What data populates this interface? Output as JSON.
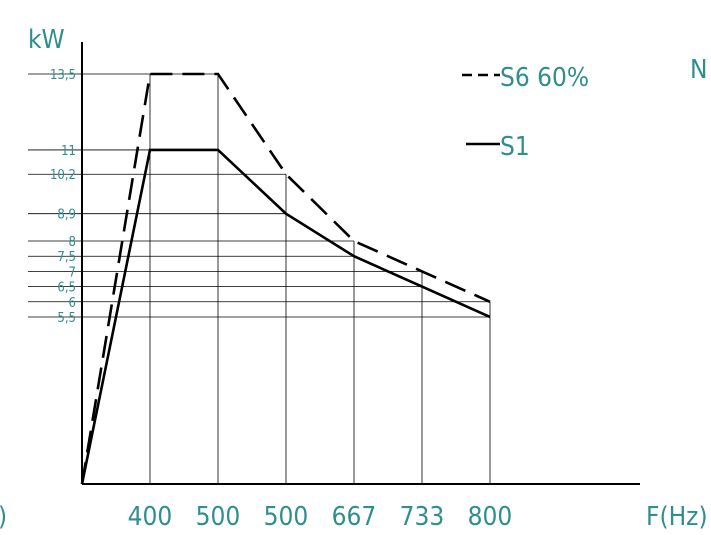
{
  "chart_data": {
    "type": "line",
    "ylabel": "kW",
    "xlabel": "F(Hz)",
    "corner_mark_right": "N",
    "corner_mark_left": ")",
    "x_tick_labels": [
      "400",
      "500",
      "500",
      "667",
      "733",
      "800"
    ],
    "y_ticks": [
      {
        "label": "13,5",
        "value": 13.5
      },
      {
        "label": "11",
        "value": 11
      },
      {
        "label": "10,2",
        "value": 10.2
      },
      {
        "label": "8,9",
        "value": 8.9
      },
      {
        "label": "8",
        "value": 8
      },
      {
        "label": "7,5",
        "value": 7.5
      },
      {
        "label": "7",
        "value": 7
      },
      {
        "label": "6,5",
        "value": 6.5
      },
      {
        "label": "6",
        "value": 6
      },
      {
        "label": "5,5",
        "value": 5.5
      }
    ],
    "ylim": [
      0,
      13.5
    ],
    "series": [
      {
        "name": "S6 60%",
        "style": "dashed",
        "points": [
          {
            "x": 0,
            "y": 0
          },
          {
            "x": 1,
            "y": 13.5
          },
          {
            "x": 2,
            "y": 13.5
          },
          {
            "x": 3,
            "y": 10.2
          },
          {
            "x": 4,
            "y": 8
          },
          {
            "x": 5,
            "y": 7
          },
          {
            "x": 6,
            "y": 6
          }
        ]
      },
      {
        "name": "S1",
        "style": "solid",
        "points": [
          {
            "x": 0,
            "y": 0
          },
          {
            "x": 1,
            "y": 11
          },
          {
            "x": 2,
            "y": 11
          },
          {
            "x": 3,
            "y": 8.9
          },
          {
            "x": 4,
            "y": 7.5
          },
          {
            "x": 5,
            "y": 6.5
          },
          {
            "x": 6,
            "y": 5.5
          }
        ]
      }
    ],
    "grid_drops": [
      {
        "x": 1,
        "y": 13.5
      },
      {
        "x": 2,
        "y": 13.5
      },
      {
        "x": 3,
        "y": 10.2
      },
      {
        "x": 4,
        "y": 8
      },
      {
        "x": 5,
        "y": 7
      },
      {
        "x": 6,
        "y": 6
      }
    ],
    "colors": {
      "text": "#2f8f8f",
      "lines": "#000000"
    }
  }
}
